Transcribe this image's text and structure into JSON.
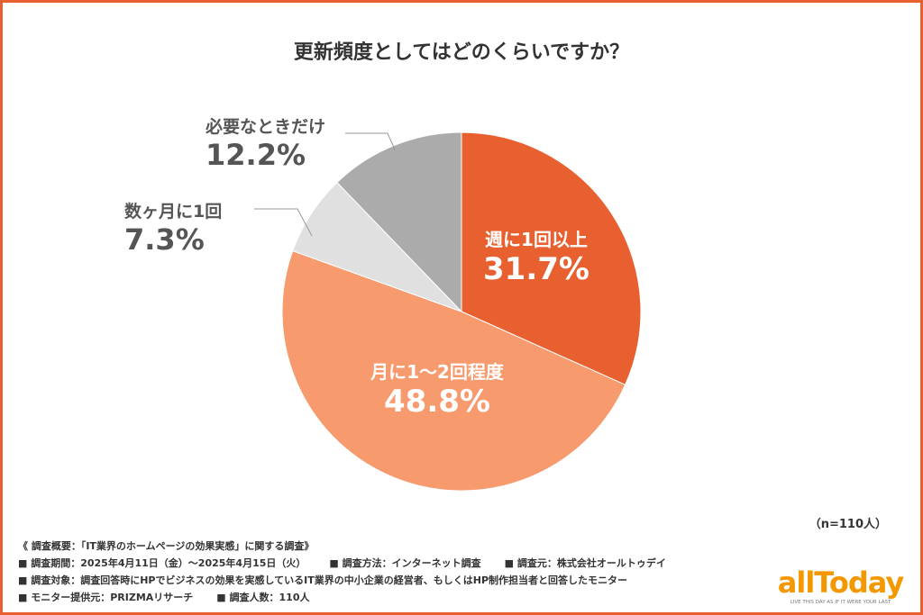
{
  "chart_data": {
    "type": "pie",
    "title": "更新頻度としてはどのくらいですか？",
    "slices": [
      {
        "label": "週に1回以上",
        "value": 31.7,
        "display": "31.7%",
        "color": "#E8602F"
      },
      {
        "label": "月に1～2回程度",
        "value": 48.8,
        "display": "48.8%",
        "color": "#F79A6E"
      },
      {
        "label": "数ヶ月に1回",
        "value": 7.3,
        "display": "7.3%",
        "color": "#E0E0E0"
      },
      {
        "label": "必要なときだけ",
        "value": 12.2,
        "display": "12.2%",
        "color": "#ABABAB"
      }
    ],
    "sample_size": "（n=110人）"
  },
  "notes": {
    "heading": "《 調査概要：「IT業界のホームページの効果実感」に関する調査》",
    "period": "■ 調査期間：2025年4月11日（金）～2025年4月15日（火）",
    "method": "■ 調査方法：インターネット調査",
    "org": "■ 調査元：株式会社オールトゥデイ",
    "target": "■ 調査対象：調査回答時にHPでビジネスの効果を実感しているIT業界の中小企業の経営者、もしくはHP制作担当者と回答したモニター",
    "provider": "■ モニター提供元：PRIZMAリサーチ",
    "count": "■ 調査人数：110人"
  },
  "logo": {
    "wordmark": "allToday",
    "tagline": "LIVE THIS DAY AS IF IT WERE YOUR LAST"
  }
}
